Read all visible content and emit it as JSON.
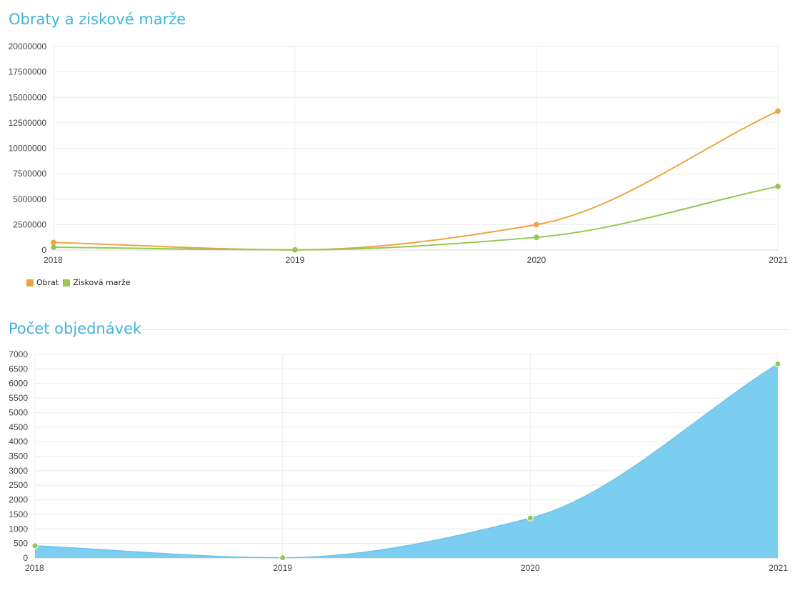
{
  "charts": {
    "revenue": {
      "title": "Obraty a ziskové marže",
      "chart_data": {
        "type": "line",
        "title": "Obraty a ziskové marže",
        "categories": [
          "2018",
          "2019",
          "2020",
          "2021"
        ],
        "ylim": [
          0,
          20000000
        ],
        "yticks": [
          0,
          2500000,
          5000000,
          7500000,
          10000000,
          12500000,
          15000000,
          17500000,
          20000000
        ],
        "grid": true,
        "legend_position": "bottom-left",
        "series": [
          {
            "name": "Obrat",
            "color": "#f0a33d",
            "values": [
              750000,
              20000,
              2500000,
              13650000
            ]
          },
          {
            "name": "Zisková marže",
            "color": "#96c653",
            "values": [
              280000,
              20000,
              1250000,
              6250000
            ]
          }
        ]
      }
    },
    "orders": {
      "title": "Počet objednávek",
      "chart_data": {
        "type": "area",
        "title": "Počet objednávek",
        "categories": [
          "2018",
          "2019",
          "2020",
          "2021"
        ],
        "ylim": [
          0,
          7000
        ],
        "yticks": [
          0,
          500,
          1000,
          1500,
          2000,
          2500,
          3000,
          3500,
          4000,
          4500,
          5000,
          5500,
          6000,
          6500,
          7000
        ],
        "grid": true,
        "fill_color": "#7ccef0",
        "point_color": "#96c653",
        "series": [
          {
            "name": "",
            "values": [
              420,
              10,
              1370,
              6670
            ]
          }
        ]
      }
    }
  }
}
